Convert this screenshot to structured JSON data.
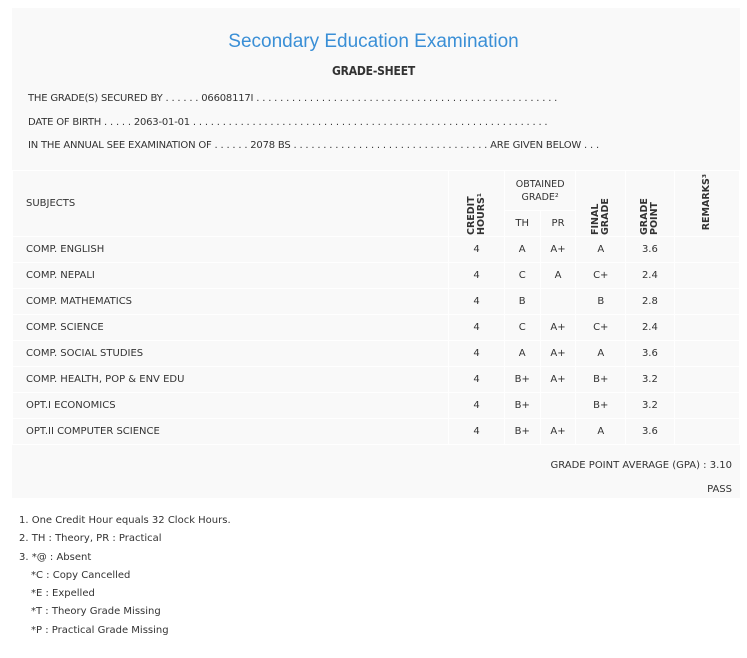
{
  "header": {
    "title": "Secondary Education Examination",
    "subtitle": "GRADE-SHEET"
  },
  "info": {
    "secured_by": "THE GRADE(S) SECURED BY . . . . . . 06608117I . . . . . . . . . . . . . . . . . . . . . . . . . . . . . . . . . . . . . . . . . . . . . . . . . . .",
    "dob": "DATE OF BIRTH . . . . . 2063-01-01 . . . . . . . . . . . . . . . . . . . . . . . . . . . . . . . . . . . . . . . . . . . . . . . . . . . . . . . . . . . .",
    "exam": "IN THE ANNUAL SEE EXAMINATION OF . . . . . . 2078 BS . . . . . . . . . . . . . . . . . . . . . . . . . . . . . . . . . ARE GIVEN BELOW . . ."
  },
  "table": {
    "headers": {
      "subjects": "SUBJECTS",
      "credit": "CREDIT HOURS¹",
      "obtained": "OBTAINED GRADE²",
      "th": "TH",
      "pr": "PR",
      "final": "FINAL GRADE",
      "point": "GRADE POINT",
      "remarks": "REMARKS³"
    },
    "rows": [
      {
        "subject": "COMP. ENGLISH",
        "credit": "4",
        "th": "A",
        "pr": "A+",
        "final": "A",
        "point": "3.6",
        "remarks": ""
      },
      {
        "subject": "COMP. NEPALI",
        "credit": "4",
        "th": "C",
        "pr": "A",
        "final": "C+",
        "point": "2.4",
        "remarks": ""
      },
      {
        "subject": "COMP. MATHEMATICS",
        "credit": "4",
        "th": "B",
        "pr": "",
        "final": "B",
        "point": "2.8",
        "remarks": ""
      },
      {
        "subject": "COMP. SCIENCE",
        "credit": "4",
        "th": "C",
        "pr": "A+",
        "final": "C+",
        "point": "2.4",
        "remarks": ""
      },
      {
        "subject": "COMP. SOCIAL STUDIES",
        "credit": "4",
        "th": "A",
        "pr": "A+",
        "final": "A",
        "point": "3.6",
        "remarks": ""
      },
      {
        "subject": "COMP. HEALTH, POP & ENV EDU",
        "credit": "4",
        "th": "B+",
        "pr": "A+",
        "final": "B+",
        "point": "3.2",
        "remarks": ""
      },
      {
        "subject": "OPT.I ECONOMICS",
        "credit": "4",
        "th": "B+",
        "pr": "",
        "final": "B+",
        "point": "3.2",
        "remarks": ""
      },
      {
        "subject": "OPT.II COMPUTER SCIENCE",
        "credit": "4",
        "th": "B+",
        "pr": "A+",
        "final": "A",
        "point": "3.6",
        "remarks": ""
      }
    ]
  },
  "summary": {
    "gpa": "GRADE POINT AVERAGE (GPA) : 3.10",
    "result": "PASS"
  },
  "notes": [
    "1. One Credit Hour equals 32 Clock Hours.",
    "2. TH : Theory, PR : Practical",
    "3. *@ : Absent",
    "*C : Copy Cancelled",
    "*E : Expelled",
    "*T : Theory Grade Missing",
    "*P : Practical Grade Missing"
  ]
}
